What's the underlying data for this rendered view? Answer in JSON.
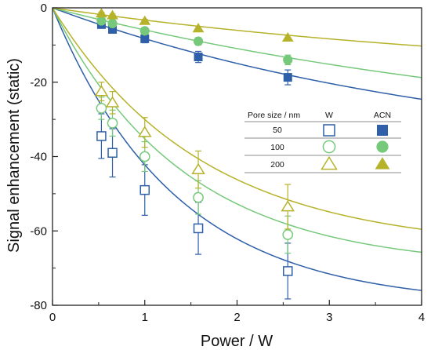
{
  "chart_data": {
    "type": "scatter",
    "xlabel": "Power / W",
    "ylabel": "Signal enhancement (static)",
    "xlim": [
      0,
      4
    ],
    "ylim": [
      -80,
      0
    ],
    "xticks": [
      "0",
      "1",
      "2",
      "3",
      "4"
    ],
    "yticks": [
      "0",
      "-20",
      "-40",
      "-60",
      "-80"
    ],
    "legend": {
      "placement": "center-right",
      "header": [
        "Pore size / nm",
        "W",
        "ACN"
      ],
      "rows": [
        "50",
        "100",
        "200"
      ]
    },
    "colors": {
      "50": "#2e5fa8",
      "100": "#76c97a",
      "200": "#b6b22a"
    },
    "series": [
      {
        "name": "50",
        "solvent": "W",
        "marker": "open-square",
        "color": "#2e5fa8",
        "x": [
          0.53,
          0.65,
          1.0,
          1.58,
          2.55
        ],
        "y": [
          -34.5,
          -39,
          -49,
          -59.3,
          -70.8
        ],
        "err": [
          6,
          6.5,
          6.8,
          7,
          7.5
        ],
        "fit": {
          "a": -80,
          "k": 0.75
        }
      },
      {
        "name": "100",
        "solvent": "W",
        "marker": "open-circle",
        "color": "#76c97a",
        "x": [
          0.53,
          0.65,
          1.0,
          1.58,
          2.55
        ],
        "y": [
          -27,
          -31,
          -40,
          -51,
          -61
        ],
        "err": [
          3,
          3.5,
          4,
          4.5,
          5
        ],
        "fit": {
          "a": -70,
          "k": 0.7
        }
      },
      {
        "name": "200",
        "solvent": "W",
        "marker": "open-triangle",
        "color": "#b6b22a",
        "x": [
          0.53,
          0.65,
          1.0,
          1.58,
          2.55
        ],
        "y": [
          -22.5,
          -25.5,
          -33.5,
          -43.5,
          -53.5
        ],
        "err": [
          2.5,
          3,
          4,
          5,
          6
        ],
        "fit": {
          "a": -65,
          "k": 0.62
        }
      },
      {
        "name": "50",
        "solvent": "ACN",
        "marker": "filled-square",
        "color": "#2e5fa8",
        "x": [
          0.53,
          0.65,
          1.0,
          1.58,
          2.55
        ],
        "y": [
          -4.5,
          -5.8,
          -8.3,
          -13.2,
          -18.7
        ],
        "err": [
          0.8,
          0.9,
          1.1,
          1.5,
          2
        ],
        "fit": {
          "a": -42,
          "k": 0.22
        }
      },
      {
        "name": "100",
        "solvent": "ACN",
        "marker": "filled-circle",
        "color": "#76c97a",
        "x": [
          0.53,
          0.65,
          1.0,
          1.58,
          2.55
        ],
        "y": [
          -3.5,
          -4.2,
          -6.2,
          -9,
          -14
        ],
        "err": [
          0.5,
          0.6,
          0.8,
          1,
          1.3
        ],
        "fit": {
          "a": -38,
          "k": 0.17
        }
      },
      {
        "name": "200",
        "solvent": "ACN",
        "marker": "filled-triangle",
        "color": "#b6b22a",
        "x": [
          0.53,
          0.65,
          1.0,
          1.58,
          2.55
        ],
        "y": [
          -1.5,
          -2,
          -3.5,
          -5.5,
          -8
        ],
        "err": [
          0.3,
          0.3,
          0.4,
          0.5,
          0.6
        ],
        "fit": {
          "a": -20,
          "k": 0.18
        }
      }
    ]
  }
}
